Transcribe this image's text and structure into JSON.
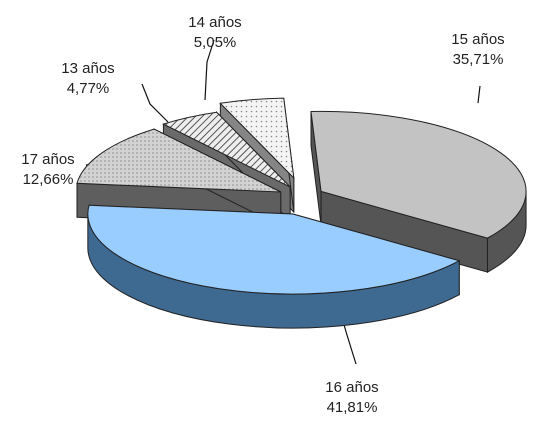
{
  "chart_data": {
    "type": "pie",
    "style": "3d-exploded",
    "categories": [
      "14 años",
      "15 años",
      "16 años",
      "17 años",
      "13 años"
    ],
    "values": [
      5.05,
      35.71,
      41.81,
      12.66,
      4.77
    ],
    "value_labels": [
      "5,05%",
      "35,71%",
      "41,81%",
      "12,66%",
      "4,77%"
    ],
    "highlight": "16 años",
    "legend": "none",
    "colors": {
      "15 años": "#c3c3c3",
      "16 años": "#99ccff",
      "17 años": "#cfcfcf",
      "13 años": "#dcdcdc",
      "14 años": "#f2f2f2"
    }
  }
}
